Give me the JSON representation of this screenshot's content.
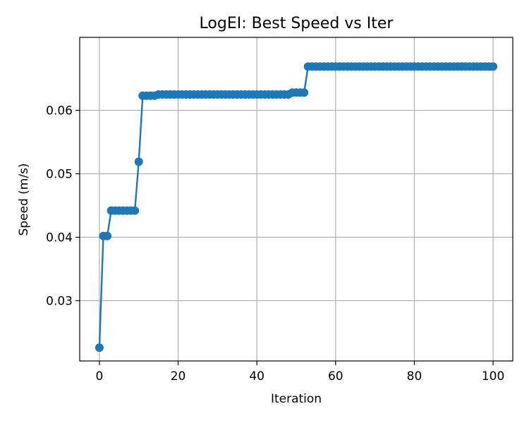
{
  "chart_data": {
    "type": "line",
    "title": "LogEI: Best Speed vs Iter",
    "xlabel": "Iteration",
    "ylabel": "Speed (m/s)",
    "xlim": [
      -5,
      105
    ],
    "ylim": [
      0.0205,
      0.0715
    ],
    "xticks": [
      0,
      20,
      40,
      60,
      80,
      100
    ],
    "xtick_labels": [
      "0",
      "20",
      "40",
      "60",
      "80",
      "100"
    ],
    "yticks": [
      0.03,
      0.04,
      0.05,
      0.06
    ],
    "ytick_labels": [
      "0.03",
      "0.04",
      "0.05",
      "0.06"
    ],
    "grid": true,
    "colors": {
      "series": "#1f77b4",
      "grid": "#b0b0b0"
    },
    "series": [
      {
        "marker": "circle",
        "x": [
          0,
          1,
          2,
          3,
          4,
          5,
          6,
          7,
          8,
          9,
          10,
          11,
          12,
          13,
          14,
          15,
          16,
          17,
          18,
          19,
          20,
          21,
          22,
          23,
          24,
          25,
          26,
          27,
          28,
          29,
          30,
          31,
          32,
          33,
          34,
          35,
          36,
          37,
          38,
          39,
          40,
          41,
          42,
          43,
          44,
          45,
          46,
          47,
          48,
          49,
          50,
          51,
          52,
          53,
          54,
          55,
          56,
          57,
          58,
          59,
          60,
          61,
          62,
          63,
          64,
          65,
          66,
          67,
          68,
          69,
          70,
          71,
          72,
          73,
          74,
          75,
          76,
          77,
          78,
          79,
          80,
          81,
          82,
          83,
          84,
          85,
          86,
          87,
          88,
          89,
          90,
          91,
          92,
          93,
          94,
          95,
          96,
          97,
          98,
          99,
          100
        ],
        "y": [
          0.0226,
          0.0402,
          0.0402,
          0.0442,
          0.0442,
          0.0442,
          0.0442,
          0.0442,
          0.0442,
          0.0442,
          0.0519,
          0.0623,
          0.0623,
          0.0623,
          0.0623,
          0.0625,
          0.0625,
          0.0625,
          0.0625,
          0.0625,
          0.0625,
          0.0625,
          0.0625,
          0.0625,
          0.0625,
          0.0625,
          0.0625,
          0.0625,
          0.0625,
          0.0625,
          0.0625,
          0.0625,
          0.0625,
          0.0625,
          0.0625,
          0.0625,
          0.0625,
          0.0625,
          0.0625,
          0.0625,
          0.0625,
          0.0625,
          0.0625,
          0.0625,
          0.0625,
          0.0625,
          0.0625,
          0.0625,
          0.0625,
          0.0628,
          0.0628,
          0.0628,
          0.0628,
          0.0669,
          0.0669,
          0.0669,
          0.0669,
          0.0669,
          0.0669,
          0.0669,
          0.0669,
          0.0669,
          0.0669,
          0.0669,
          0.0669,
          0.0669,
          0.0669,
          0.0669,
          0.0669,
          0.0669,
          0.0669,
          0.0669,
          0.0669,
          0.0669,
          0.0669,
          0.0669,
          0.0669,
          0.0669,
          0.0669,
          0.0669,
          0.0669,
          0.0669,
          0.0669,
          0.0669,
          0.0669,
          0.0669,
          0.0669,
          0.0669,
          0.0669,
          0.0669,
          0.0669,
          0.0669,
          0.0669,
          0.0669,
          0.0669,
          0.0669,
          0.0669,
          0.0669,
          0.0669,
          0.0669,
          0.0669
        ]
      }
    ]
  }
}
